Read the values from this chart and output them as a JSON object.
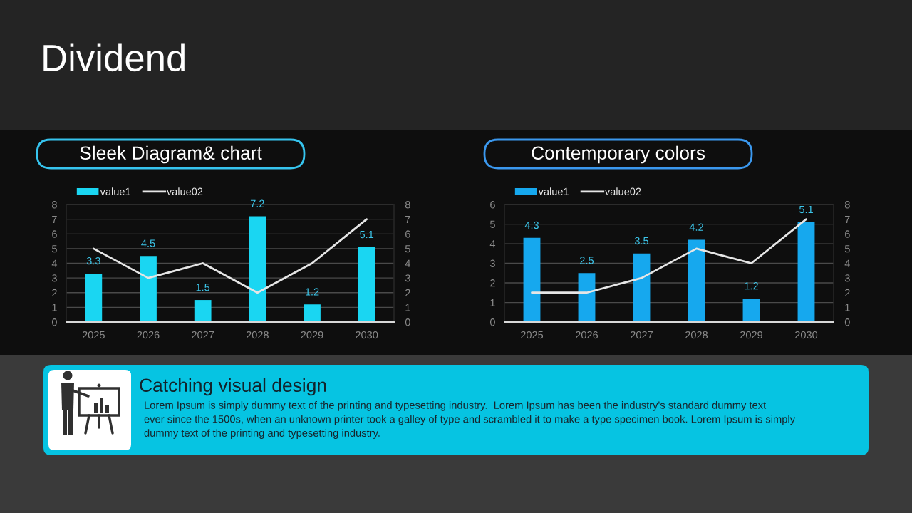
{
  "chart_data": [
    {
      "type": "other",
      "title": "Dividend"
    },
    {
      "type": "bar",
      "title": "Sleek Diagram& chart",
      "categories": [
        "2025",
        "2026",
        "2027",
        "2028",
        "2029",
        "2030"
      ],
      "series": [
        {
          "name": "value1",
          "type": "bar",
          "color": "#1ad6f2",
          "values": [
            3.3,
            4.5,
            1.5,
            7.2,
            1.2,
            5.1
          ],
          "value_labels": [
            "3.3",
            "4.5",
            "1.5",
            "7.2",
            "1.2",
            "5.1"
          ]
        },
        {
          "name": "value02",
          "type": "line",
          "axis": "y2",
          "color": "#e6e6e6",
          "values": [
            5,
            3,
            4,
            2,
            4,
            7
          ]
        }
      ],
      "ylim": [
        0,
        8
      ],
      "yticks": [
        0,
        1,
        2,
        3,
        4,
        5,
        6,
        7,
        8
      ],
      "y2lim": [
        0,
        8
      ],
      "y2ticks": [
        0,
        1,
        2,
        3,
        4,
        5,
        6,
        7,
        8
      ],
      "grid": "y",
      "legend": "top left"
    },
    {
      "type": "bar",
      "title": "Contemporary colors",
      "categories": [
        "2025",
        "2026",
        "2027",
        "2028",
        "2029",
        "2030"
      ],
      "series": [
        {
          "name": "value1",
          "type": "bar",
          "color": "#16a8ee",
          "values": [
            4.3,
            2.5,
            3.5,
            4.2,
            1.2,
            5.1
          ],
          "value_labels": [
            "4.3",
            "2.5",
            "3.5",
            "4.2",
            "1.2",
            "5.1"
          ]
        },
        {
          "name": "value02",
          "type": "line",
          "axis": "y2",
          "color": "#e6e6e6",
          "values": [
            2,
            2,
            3,
            5,
            4,
            7
          ]
        }
      ],
      "ylim": [
        0,
        6
      ],
      "yticks": [
        0,
        1,
        2,
        3,
        4,
        5,
        6
      ],
      "y2lim": [
        0,
        8
      ],
      "y2ticks": [
        0,
        1,
        2,
        3,
        4,
        5,
        6,
        7,
        8
      ],
      "grid": "y",
      "legend": "top left"
    },
    {
      "type": "other",
      "title": "Catching visual design",
      "annotations": [
        "Lorem Ipsum is simply dummy text of the printing and typesetting industry.  Lorem Ipsum has been the industry's standard dummy text\never since the 1500s, when an unknown printer took a galley of type and scrambled it to make a type specimen book. Lorem Ipsum is simply\ndummy text of the printing and typesetting industry."
      ]
    }
  ]
}
